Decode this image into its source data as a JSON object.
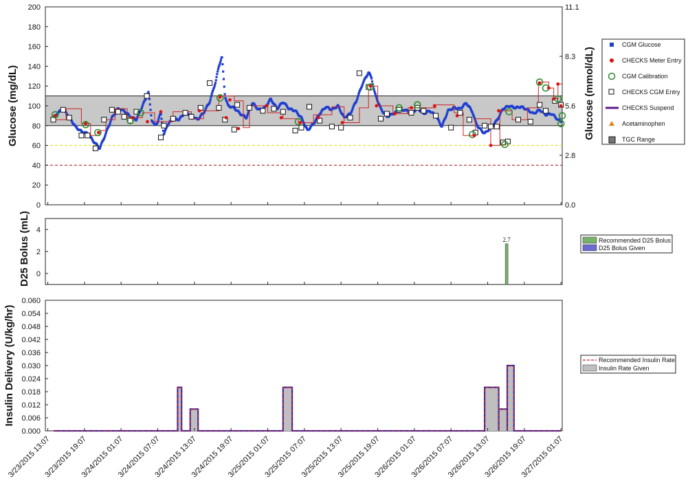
{
  "chart_data": [
    {
      "type": "scatter",
      "ylabel_left": "Glucose (mg/dL)",
      "ylabel_right": "Glucose (mmol/dL)",
      "ylim": [
        0,
        200
      ],
      "yticks": [
        "0",
        "20",
        "40",
        "60",
        "80",
        "100",
        "120",
        "140",
        "160",
        "180",
        "200"
      ],
      "right_yticks": [
        {
          "label": "0.0",
          "value_mgdl": 0
        },
        {
          "label": "2.8",
          "value_mgdl": 50
        },
        {
          "label": "5.6",
          "value_mgdl": 100
        },
        {
          "label": "8.3",
          "value_mgdl": 150
        },
        {
          "label": "11.1",
          "value_mgdl": 200
        }
      ],
      "xrange_hours": [
        -0.4,
        84.2
      ],
      "tgc_range": [
        80,
        110
      ],
      "ref_lines": [
        {
          "value": 60,
          "color": "#dddd00",
          "style": "dashed"
        },
        {
          "value": 40,
          "color": "#aa1111",
          "style": "dashed"
        }
      ],
      "legend": [
        {
          "label": "CGM Glucose",
          "symbol": "blue-square"
        },
        {
          "label": "CHECKS Meter Entry",
          "symbol": "red-dot"
        },
        {
          "label": "CGM Calibration",
          "symbol": "green-circle"
        },
        {
          "label": "CHECKS CGM Entry",
          "symbol": "open-square"
        },
        {
          "label": "CHECKS Suspend",
          "symbol": "purple-line"
        },
        {
          "label": "Acetaminophen",
          "symbol": "orange-triangle"
        },
        {
          "label": "TGC Range",
          "symbol": "gray-box"
        }
      ],
      "colors": {
        "cgm": "#1f3fd1",
        "meter": "#dd1111",
        "calibration": "#2e8b2e",
        "step": "#cc2222",
        "tgc_fill": "#c8c8c8"
      },
      "cgm_anchors": [
        [
          0.8,
          87
        ],
        [
          1.5,
          92
        ],
        [
          2.5,
          97
        ],
        [
          3.5,
          89
        ],
        [
          4.5,
          79
        ],
        [
          5.5,
          74
        ],
        [
          6.5,
          72
        ],
        [
          7.5,
          64
        ],
        [
          8.5,
          57
        ],
        [
          9.5,
          72
        ],
        [
          10.5,
          88
        ],
        [
          11.5,
          97
        ],
        [
          12.5,
          95
        ],
        [
          13.5,
          89
        ],
        [
          14.5,
          86
        ],
        [
          15.5,
          100
        ],
        [
          16.5,
          114
        ],
        [
          17.0,
          86
        ],
        [
          17.5,
          80
        ],
        [
          18.0,
          84
        ],
        [
          18.5,
          93
        ],
        [
          19,
          70
        ],
        [
          19.5,
          80
        ],
        [
          20.5,
          87
        ],
        [
          21.5,
          86
        ],
        [
          22.5,
          94
        ],
        [
          23.5,
          90
        ],
        [
          24.5,
          86
        ],
        [
          25.5,
          93
        ],
        [
          26.5,
          104
        ],
        [
          27.5,
          125
        ],
        [
          28.0,
          140
        ],
        [
          28.5,
          150
        ],
        [
          29,
          110
        ],
        [
          29.5,
          100
        ],
        [
          30.5,
          98
        ],
        [
          31.5,
          92
        ],
        [
          32.5,
          88
        ],
        [
          33.5,
          103
        ],
        [
          34.5,
          96
        ],
        [
          35.5,
          98
        ],
        [
          36.5,
          107
        ],
        [
          37.5,
          97
        ],
        [
          38.5,
          104
        ],
        [
          39.5,
          97
        ],
        [
          40.5,
          95
        ],
        [
          41.5,
          88
        ],
        [
          42.5,
          75
        ],
        [
          43.5,
          82
        ],
        [
          44.5,
          92
        ],
        [
          45.5,
          99
        ],
        [
          46.5,
          96
        ],
        [
          47.5,
          100
        ],
        [
          48.5,
          88
        ],
        [
          49.5,
          92
        ],
        [
          50.5,
          105
        ],
        [
          51.5,
          122
        ],
        [
          52,
          128
        ],
        [
          52.5,
          134
        ],
        [
          53,
          128
        ],
        [
          53.5,
          113
        ],
        [
          54.5,
          97
        ],
        [
          55.5,
          89
        ],
        [
          56.5,
          92
        ],
        [
          57.5,
          95
        ],
        [
          58.5,
          96
        ],
        [
          59.5,
          92
        ],
        [
          60.5,
          98
        ],
        [
          61.5,
          92
        ],
        [
          62.5,
          95
        ],
        [
          63.5,
          90
        ],
        [
          64.5,
          79
        ],
        [
          65.5,
          95
        ],
        [
          66.5,
          98
        ],
        [
          67.5,
          97
        ],
        [
          68.5,
          103
        ],
        [
          69.5,
          94
        ],
        [
          70,
          84
        ],
        [
          70.5,
          78
        ],
        [
          71.5,
          72
        ],
        [
          72.5,
          78
        ],
        [
          73.5,
          85
        ],
        [
          74.5,
          97
        ],
        [
          75.5,
          100
        ],
        [
          76.5,
          98
        ],
        [
          77.5,
          99
        ],
        [
          78.5,
          96
        ],
        [
          79.5,
          92
        ],
        [
          80.5,
          96
        ],
        [
          81.5,
          91
        ],
        [
          82.5,
          92
        ],
        [
          83.5,
          86
        ],
        [
          84.0,
          84
        ]
      ],
      "meter_entries": [
        [
          1.2,
          90
        ],
        [
          6.2,
          82
        ],
        [
          8.3,
          73
        ],
        [
          13.8,
          88
        ],
        [
          16.3,
          84
        ],
        [
          18.5,
          94
        ],
        [
          24.8,
          95
        ],
        [
          28.2,
          109
        ],
        [
          29.2,
          88
        ],
        [
          29.8,
          106
        ],
        [
          31.2,
          77
        ],
        [
          35.8,
          100
        ],
        [
          38.2,
          88
        ],
        [
          41.3,
          83
        ],
        [
          44.3,
          88
        ],
        [
          48.2,
          83
        ],
        [
          52.8,
          120
        ],
        [
          53.8,
          100
        ],
        [
          56.8,
          92
        ],
        [
          59.5,
          98
        ],
        [
          63.3,
          100
        ],
        [
          67.0,
          90
        ],
        [
          69.8,
          70
        ],
        [
          72.5,
          60
        ],
        [
          73.8,
          95
        ],
        [
          80.5,
          123
        ],
        [
          82.0,
          118
        ],
        [
          82.8,
          107
        ],
        [
          83.5,
          122
        ],
        [
          84.0,
          100
        ]
      ],
      "calibrations": [
        [
          1.2,
          91
        ],
        [
          6.2,
          81
        ],
        [
          8.2,
          73
        ],
        [
          13.5,
          85
        ],
        [
          15.2,
          93
        ],
        [
          28.2,
          108
        ],
        [
          41.0,
          84
        ],
        [
          52.8,
          119
        ],
        [
          57.5,
          98
        ],
        [
          60.5,
          101
        ],
        [
          69.5,
          71
        ],
        [
          74.8,
          61
        ],
        [
          75.5,
          94
        ],
        [
          80.5,
          124
        ],
        [
          81.5,
          118
        ],
        [
          83.5,
          107
        ],
        [
          84.0,
          82
        ],
        [
          84.2,
          90
        ]
      ],
      "checks_entries": [
        [
          0.9,
          86
        ],
        [
          2.5,
          96
        ],
        [
          3.5,
          88
        ],
        [
          5.5,
          70
        ],
        [
          6.5,
          70
        ],
        [
          7.8,
          57
        ],
        [
          9.2,
          86
        ],
        [
          10.5,
          96
        ],
        [
          11.5,
          94
        ],
        [
          12.5,
          89
        ],
        [
          13.5,
          85
        ],
        [
          14.5,
          94
        ],
        [
          16.2,
          110
        ],
        [
          18.5,
          68
        ],
        [
          19.0,
          80
        ],
        [
          20.5,
          87
        ],
        [
          22.5,
          93
        ],
        [
          23.5,
          89
        ],
        [
          25.0,
          98
        ],
        [
          26.5,
          123
        ],
        [
          28.0,
          98
        ],
        [
          29.0,
          86
        ],
        [
          30.5,
          76
        ],
        [
          31.0,
          101
        ],
        [
          33.0,
          98
        ],
        [
          35.2,
          95
        ],
        [
          37.0,
          97
        ],
        [
          38.5,
          94
        ],
        [
          40.5,
          75
        ],
        [
          41.5,
          78
        ],
        [
          42.8,
          99
        ],
        [
          44.5,
          85
        ],
        [
          46.5,
          79
        ],
        [
          48.0,
          78
        ],
        [
          49.5,
          88
        ],
        [
          51.0,
          133
        ],
        [
          52.5,
          119
        ],
        [
          54.5,
          87
        ],
        [
          55.5,
          92
        ],
        [
          57.5,
          96
        ],
        [
          59.5,
          93
        ],
        [
          60.5,
          98
        ],
        [
          61.5,
          95
        ],
        [
          63.5,
          90
        ],
        [
          66.0,
          78
        ],
        [
          67.5,
          93
        ],
        [
          69.0,
          86
        ],
        [
          70.0,
          73
        ],
        [
          71.5,
          80
        ],
        [
          72.5,
          79
        ],
        [
          73.5,
          79
        ],
        [
          74.5,
          63
        ],
        [
          75.3,
          64
        ],
        [
          77.0,
          86
        ],
        [
          79.0,
          84
        ],
        [
          80.5,
          101
        ],
        [
          81.5,
          95
        ],
        [
          83.0,
          105
        ],
        [
          84.0,
          101
        ]
      ],
      "step_line": [
        [
          0.8,
          86
        ],
        [
          3.0,
          86
        ],
        [
          3.0,
          97
        ],
        [
          5.5,
          97
        ],
        [
          5.5,
          82
        ],
        [
          7.0,
          82
        ],
        [
          7.0,
          70
        ],
        [
          8.5,
          70
        ],
        [
          8.5,
          75
        ],
        [
          9.5,
          75
        ],
        [
          9.5,
          86
        ],
        [
          11.0,
          86
        ],
        [
          11.0,
          97
        ],
        [
          13.0,
          97
        ],
        [
          13.0,
          88
        ],
        [
          15.5,
          88
        ],
        [
          15.5,
          93
        ],
        [
          17.5,
          93
        ],
        [
          17.5,
          84
        ],
        [
          20.5,
          84
        ],
        [
          20.5,
          94
        ],
        [
          23.5,
          94
        ],
        [
          23.5,
          87
        ],
        [
          25.5,
          87
        ],
        [
          25.5,
          95
        ],
        [
          28.0,
          95
        ],
        [
          28.0,
          110
        ],
        [
          30.5,
          110
        ],
        [
          30.5,
          105
        ],
        [
          32.0,
          105
        ],
        [
          32.0,
          78
        ],
        [
          33.0,
          78
        ],
        [
          33.0,
          100
        ],
        [
          36.0,
          100
        ],
        [
          36.0,
          93
        ],
        [
          38.5,
          93
        ],
        [
          38.5,
          87
        ],
        [
          41.0,
          87
        ],
        [
          41.0,
          83
        ],
        [
          43.5,
          83
        ],
        [
          43.5,
          91
        ],
        [
          46.5,
          91
        ],
        [
          46.5,
          99
        ],
        [
          48.5,
          99
        ],
        [
          48.5,
          83
        ],
        [
          51.0,
          83
        ],
        [
          51.0,
          98
        ],
        [
          52.5,
          98
        ],
        [
          52.5,
          120
        ],
        [
          54.0,
          120
        ],
        [
          54.0,
          100
        ],
        [
          56.5,
          100
        ],
        [
          56.5,
          92
        ],
        [
          59.0,
          92
        ],
        [
          59.0,
          98
        ],
        [
          63.5,
          98
        ],
        [
          63.5,
          101
        ],
        [
          66.5,
          101
        ],
        [
          66.5,
          93
        ],
        [
          68.0,
          93
        ],
        [
          68.0,
          70
        ],
        [
          70.0,
          70
        ],
        [
          70.0,
          87
        ],
        [
          72.5,
          87
        ],
        [
          72.5,
          60
        ],
        [
          74.0,
          60
        ],
        [
          74.0,
          95
        ],
        [
          76.0,
          95
        ],
        [
          76.0,
          86
        ],
        [
          78.5,
          86
        ],
        [
          78.5,
          98
        ],
        [
          80.3,
          98
        ],
        [
          80.3,
          124
        ],
        [
          82.0,
          124
        ],
        [
          82.0,
          118
        ],
        [
          82.8,
          118
        ],
        [
          82.8,
          107
        ],
        [
          83.5,
          107
        ],
        [
          83.5,
          122
        ],
        [
          84.2,
          122
        ]
      ]
    },
    {
      "type": "bar",
      "ylabel": "D25 Bolus (mL)",
      "ylim": [
        -1,
        5
      ],
      "yticks": [
        "0",
        "2",
        "4"
      ],
      "series": [
        {
          "name": "Recommended D25 Bolus",
          "color": "#78b26a",
          "points": [
            [
              75.1,
              2.7
            ]
          ]
        },
        {
          "name": "D25 Bolus Given",
          "color": "#6b6bd0",
          "points": []
        }
      ],
      "data_labels": [
        {
          "x": 75.1,
          "value": 2.7,
          "text": "2.7"
        }
      ]
    },
    {
      "type": "area",
      "ylabel": "Insulin Delivery (U/kg/hr)",
      "ylim": [
        0,
        0.06
      ],
      "yticks": [
        "0.000",
        "0.006",
        "0.012",
        "0.018",
        "0.024",
        "0.030",
        "0.036",
        "0.042",
        "0.048",
        "0.054",
        "0.060"
      ],
      "series": [
        {
          "name": "Recommended Insulin Rate",
          "color": "#cc2222",
          "style": "dashed"
        },
        {
          "name": "Insulin Rate Given",
          "color": "#bfbfbf"
        }
      ],
      "segments": [
        [
          21.25,
          21.9,
          0.02
        ],
        [
          23.3,
          24.6,
          0.01
        ],
        [
          38.5,
          40.0,
          0.02
        ],
        [
          71.5,
          73.8,
          0.02
        ],
        [
          73.8,
          75.2,
          0.01
        ],
        [
          75.2,
          76.3,
          0.03
        ]
      ],
      "xticks": [
        "3/23/2015 13:07",
        "3/23/2015 19:07",
        "3/24/2015 01:07",
        "3/24/2015 07:07",
        "3/24/2015 13:07",
        "3/24/2015 19:07",
        "3/25/2015 01:07",
        "3/25/2015 07:07",
        "3/25/2015 13:07",
        "3/25/2015 19:07",
        "3/26/2015 01:07",
        "3/26/2015 07:07",
        "3/26/2015 13:07",
        "3/26/2015 19:07",
        "3/27/2015 01:07"
      ],
      "xtick_hours": [
        0,
        6,
        12,
        18,
        24,
        30,
        36,
        42,
        48,
        54,
        60,
        66,
        72,
        78,
        84
      ]
    }
  ]
}
